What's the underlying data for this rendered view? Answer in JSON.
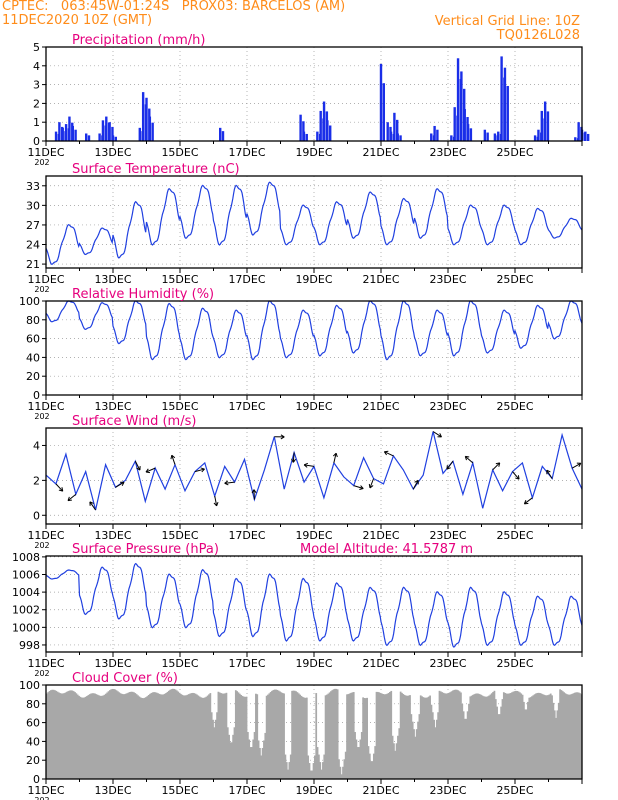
{
  "header": {
    "line1_left": "CPTEC:   063:45W-01:24S   PROX03: BARCELOS (AM)",
    "line2_left": "11DEC2020 10Z (GMT)",
    "grid_note": "Vertical Grid Line: 10Z",
    "run_code": "TQ0126L028",
    "model_altitude": "Model Altitude: 41.5787 m"
  },
  "colors": {
    "header": "#ff8c1a",
    "title": "#e6007e",
    "line": "#2040e0",
    "bar": "#1a2ee8",
    "cloud": "#a8a8a8",
    "grid": "#999999"
  },
  "x_labels": [
    "11DEC",
    "13DEC",
    "15DEC",
    "17DEC",
    "19DEC",
    "21DEC",
    "23DEC",
    "25DEC"
  ],
  "x_sub_label": "202",
  "panels": {
    "precip": {
      "title": "Precipitation (mm/h)",
      "yticks": [
        "0",
        "1",
        "2",
        "3",
        "4",
        "5"
      ]
    },
    "temp": {
      "title": "Surface Temperature (nC)",
      "yticks": [
        "21",
        "24",
        "27",
        "30",
        "33"
      ]
    },
    "rh": {
      "title": "Relative Humidity (%)",
      "yticks": [
        "0",
        "20",
        "40",
        "60",
        "80",
        "100"
      ]
    },
    "wind": {
      "title": "Surface Wind (m/s)",
      "yticks": [
        "0",
        "2",
        "4"
      ]
    },
    "press": {
      "title": "Surface Pressure (hPa)",
      "yticks": [
        "998",
        "1000",
        "1002",
        "1004",
        "1006",
        "1008"
      ]
    },
    "cloud": {
      "title": "Cloud Cover (%)",
      "yticks": [
        "0",
        "20",
        "40",
        "60",
        "80",
        "100"
      ]
    }
  },
  "chart_data": [
    {
      "type": "bar",
      "title": "Precipitation (mm/h)",
      "x_unit": "days since 11DEC2020 00Z",
      "ylim": [
        0,
        5
      ],
      "x": [
        0.3,
        0.4,
        0.5,
        0.6,
        0.7,
        0.8,
        1.2,
        1.6,
        1.7,
        1.8,
        1.9,
        2.0,
        2.8,
        2.9,
        3.0,
        3.1,
        5.2,
        7.6,
        7.7,
        8.1,
        8.2,
        8.3,
        8.4,
        10.0,
        10.2,
        10.3,
        10.4,
        10.5,
        11.5,
        11.6,
        12.1,
        12.2,
        12.3,
        12.4,
        12.5,
        12.6,
        13.1,
        13.4,
        13.5,
        13.6,
        13.7,
        14.6,
        14.7,
        14.8,
        14.9,
        15.8,
        15.9,
        16.0,
        16.1
      ],
      "values": [
        0.5,
        1.0,
        0.7,
        0.9,
        1.3,
        0.8,
        0.4,
        0.4,
        1.1,
        1.3,
        1.0,
        0.3,
        0.7,
        2.6,
        2.3,
        1.3,
        0.7,
        1.4,
        0.5,
        0.5,
        1.6,
        2.1,
        1.1,
        4.1,
        1.0,
        0.5,
        1.5,
        0.4,
        0.4,
        0.8,
        0.3,
        1.8,
        4.4,
        3.7,
        1.7,
        0.9,
        0.6,
        0.4,
        0.5,
        4.5,
        3.9,
        0.3,
        0.6,
        1.6,
        2.1,
        0.2,
        1.0,
        0.6,
        0.5
      ]
    },
    {
      "type": "line",
      "title": "Surface Temperature (nC)",
      "ylim": [
        20.4,
        34.5
      ],
      "peaks": [
        27.0,
        26.5,
        30.5,
        32.5,
        33.0,
        33.0,
        33.5,
        30.0,
        30.5,
        32.0,
        31.0,
        32.5,
        30.0,
        30.0,
        29.5,
        28.0
      ],
      "troughs": [
        21.0,
        22.5,
        22.0,
        24.0,
        25.0,
        24.0,
        25.5,
        24.0,
        24.0,
        25.0,
        24.0,
        25.0,
        24.0,
        24.0,
        24.0,
        25.0
      ]
    },
    {
      "type": "line",
      "title": "Relative Humidity (%)",
      "ylim": [
        0,
        100
      ],
      "peaks": [
        100,
        98,
        100,
        97,
        92,
        90,
        100,
        90,
        95,
        100,
        100,
        90,
        100,
        90,
        95,
        100
      ],
      "troughs": [
        78,
        70,
        55,
        38,
        38,
        40,
        38,
        40,
        42,
        45,
        38,
        42,
        42,
        45,
        50,
        60
      ]
    },
    {
      "type": "line",
      "title": "Surface Wind (m/s)",
      "ylim": [
        -0.5,
        5
      ],
      "values": [
        2.3,
        1.8,
        3.5,
        1.2,
        2.5,
        0.3,
        2.9,
        1.6,
        2.0,
        3.1,
        0.8,
        2.7,
        1.5,
        2.9,
        1.4,
        2.5,
        3.0,
        1.1,
        2.8,
        1.9,
        3.2,
        0.9,
        2.6,
        4.5,
        1.5,
        3.6,
        1.9,
        2.8,
        1.0,
        3.0,
        2.2,
        1.7,
        3.3,
        2.1,
        1.8,
        3.4,
        2.6,
        1.5,
        2.3,
        4.8,
        2.4,
        3.1,
        1.2,
        3.0,
        0.4,
        2.6,
        1.4,
        2.5,
        3.0,
        1.0,
        2.8,
        2.1,
        4.6,
        2.7,
        1.5
      ]
    },
    {
      "type": "line",
      "title": "Surface Pressure (hPa)",
      "ylim": [
        997.2,
        1008.1
      ],
      "peaks": [
        1006.5,
        1006.8,
        1007.2,
        1006.0,
        1006.5,
        1005.5,
        1006.0,
        1005.5,
        1005.0,
        1004.5,
        1004.5,
        1004.0,
        1004.5,
        1004.0,
        1003.5,
        1003.5
      ],
      "troughs": [
        1005.5,
        1001.5,
        1001.0,
        1000.0,
        1000.0,
        999.0,
        999.0,
        998.5,
        998.5,
        998.5,
        998.0,
        998.0,
        997.8,
        998.0,
        998.0,
        998.0
      ]
    },
    {
      "type": "bar",
      "title": "Cloud Cover (%)",
      "ylim": [
        0,
        100
      ],
      "base": 91,
      "dips": [
        [
          5.0,
          55
        ],
        [
          5.5,
          35
        ],
        [
          6.1,
          30
        ],
        [
          6.4,
          25
        ],
        [
          7.2,
          10
        ],
        [
          7.9,
          5
        ],
        [
          8.2,
          10
        ],
        [
          8.8,
          5
        ],
        [
          9.3,
          30
        ],
        [
          9.7,
          15
        ],
        [
          10.4,
          30
        ],
        [
          11.0,
          45
        ],
        [
          11.6,
          55
        ],
        [
          12.5,
          60
        ],
        [
          13.5,
          65
        ],
        [
          14.3,
          70
        ],
        [
          15.2,
          65
        ]
      ]
    }
  ]
}
